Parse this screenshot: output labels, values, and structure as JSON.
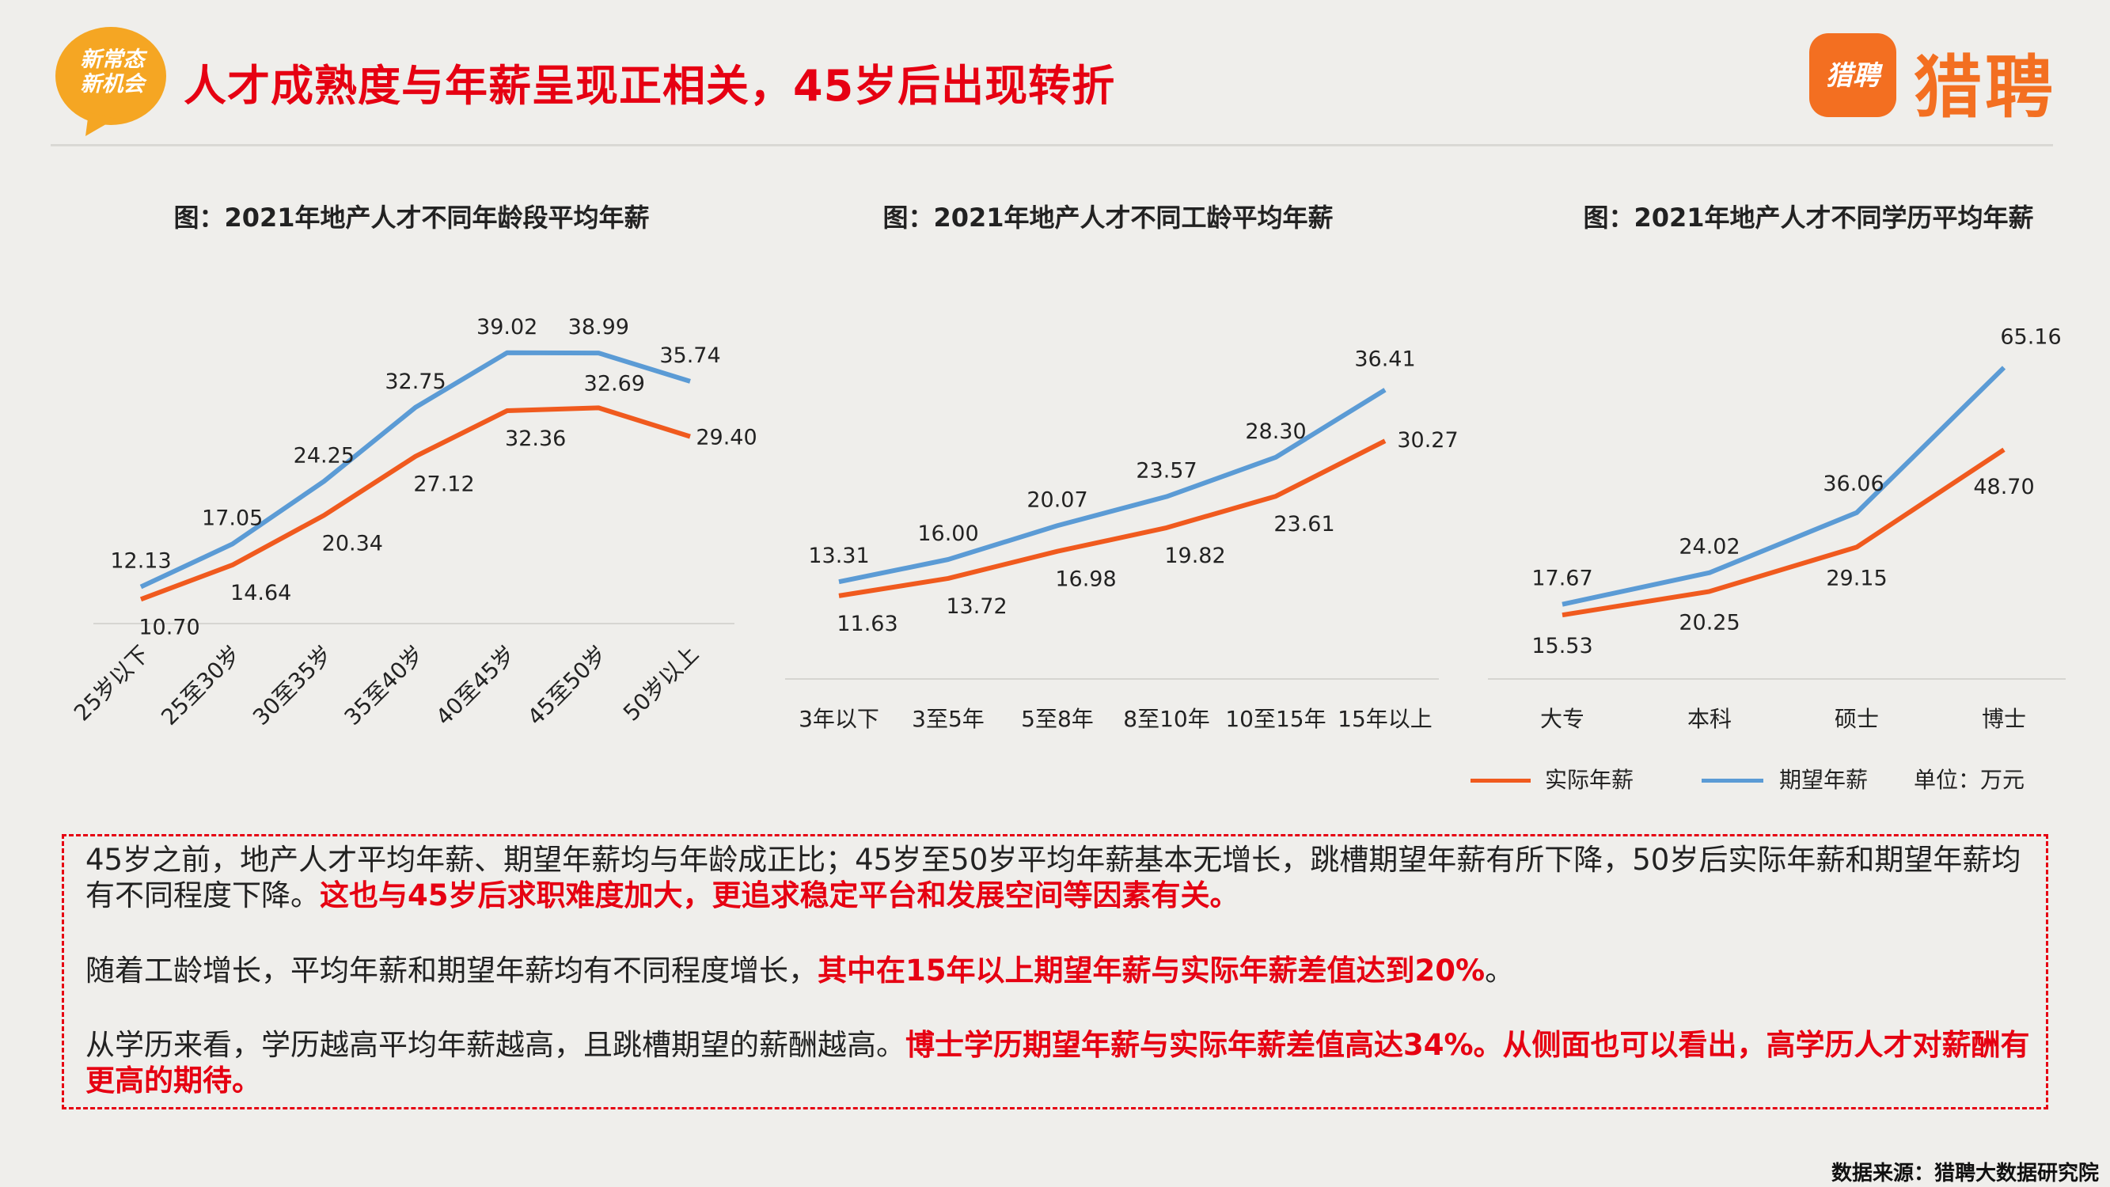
{
  "header": {
    "badge_line1": "新常态",
    "badge_line2": "新机会",
    "title": "人才成熟度与年薪呈现正相关，45岁后出现转折",
    "logo_icon_text": "猎聘",
    "logo_word": "猎聘"
  },
  "colors": {
    "actual": "#f05a1e",
    "expected": "#5b9bd5",
    "accent": "#e60012",
    "brand": "#f36f21"
  },
  "chart_data": [
    {
      "type": "line",
      "title": "图：2021年地产人才不同年龄段平均年薪",
      "categories": [
        "25岁以下",
        "25至30岁",
        "30至35岁",
        "35至40岁",
        "40至45岁",
        "45至50岁",
        "50岁以上"
      ],
      "series": [
        {
          "name": "实际年薪",
          "values": [
            10.7,
            14.64,
            20.34,
            27.12,
            32.36,
            32.69,
            29.4
          ]
        },
        {
          "name": "期望年薪",
          "values": [
            12.13,
            17.05,
            24.25,
            32.75,
            39.02,
            38.99,
            35.74
          ]
        }
      ],
      "ylim": [
        0,
        45
      ],
      "grid": false
    },
    {
      "type": "line",
      "title": "图：2021年地产人才不同工龄平均年薪",
      "categories": [
        "3年以下",
        "3至5年",
        "5至8年",
        "8至10年",
        "10至15年",
        "15年以上"
      ],
      "series": [
        {
          "name": "实际年薪",
          "values": [
            11.63,
            13.72,
            16.98,
            19.82,
            23.61,
            30.27
          ]
        },
        {
          "name": "期望年薪",
          "values": [
            13.31,
            16.0,
            20.07,
            23.57,
            28.3,
            36.41
          ]
        }
      ],
      "ylim": [
        0,
        42
      ],
      "grid": false
    },
    {
      "type": "line",
      "title": "图：2021年地产人才不同学历平均年薪",
      "categories": [
        "大专",
        "本科",
        "硕士",
        "博士"
      ],
      "series": [
        {
          "name": "实际年薪",
          "values": [
            15.53,
            20.25,
            29.15,
            48.7
          ]
        },
        {
          "name": "期望年薪",
          "values": [
            17.67,
            24.02,
            36.06,
            65.16
          ]
        }
      ],
      "ylim": [
        0,
        75
      ],
      "grid": false
    }
  ],
  "legend": {
    "actual": "实际年薪",
    "expected": "期望年薪",
    "unit": "单位：万元"
  },
  "summary": {
    "p1_plain": "45岁之前，地产人才平均年薪、期望年薪均与年龄成正比；45岁至50岁平均年薪基本无增长，跳槽期望年薪有所下降，50岁后实际年薪和期望年薪均有不同程度下降。",
    "p1_highlight": "这也与45岁后求职难度加大，更追求稳定平台和发展空间等因素有关。",
    "p2_plain": "随着工龄增长，平均年薪和期望年薪均有不同程度增长，",
    "p2_highlight": "其中在15年以上期望年薪与实际年薪差值达到20%",
    "p2_end": "。",
    "p3_plain": "从学历来看，学历越高平均年薪越高，且跳槽期望的薪酬越高。",
    "p3_highlight": "博士学历期望年薪与实际年薪差值高达34%。从侧面也可以看出，高学历人才对薪酬有更高的期待。"
  },
  "source": "数据来源：猎聘大数据研究院"
}
